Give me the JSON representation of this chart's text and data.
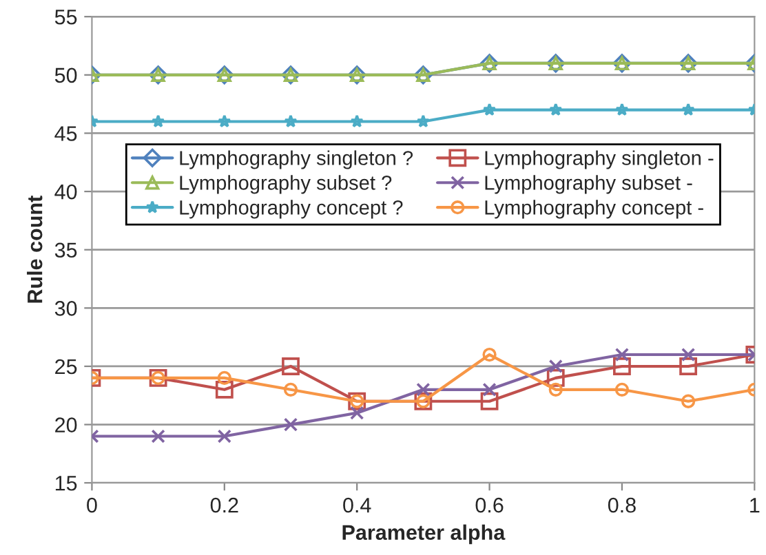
{
  "chart_data": {
    "type": "line",
    "xlabel": "Parameter alpha",
    "ylabel": "Rule count",
    "x": [
      0,
      0.1,
      0.2,
      0.3,
      0.4,
      0.5,
      0.6,
      0.7,
      0.8,
      0.9,
      1
    ],
    "xlim": [
      0,
      1
    ],
    "xticks": [
      0,
      0.2,
      0.4,
      0.6,
      0.8,
      1
    ],
    "ylim": [
      15,
      55
    ],
    "yticks": [
      15,
      20,
      25,
      30,
      35,
      40,
      45,
      50,
      55
    ],
    "grid": "y",
    "legend": "center",
    "line_style": "solid",
    "series": [
      {
        "name": "Lymphography singleton ?",
        "color": "#4f81bd",
        "marker": "diamond",
        "values": [
          50,
          50,
          50,
          50,
          50,
          50,
          51,
          51,
          51,
          51,
          51
        ]
      },
      {
        "name": "Lymphography singleton -",
        "color": "#c0504d",
        "marker": "square",
        "values": [
          24,
          24,
          23,
          25,
          22,
          22,
          22,
          24,
          25,
          25,
          26
        ]
      },
      {
        "name": "Lymphography subset ?",
        "color": "#9bbb59",
        "marker": "triangle",
        "values": [
          50,
          50,
          50,
          50,
          50,
          50,
          51,
          51,
          51,
          51,
          51
        ]
      },
      {
        "name": "Lymphography subset -",
        "color": "#8064a2",
        "marker": "cross",
        "values": [
          19,
          19,
          19,
          20,
          21,
          23,
          23,
          25,
          26,
          26,
          26
        ]
      },
      {
        "name": "Lymphography concept ?",
        "color": "#4bacc6",
        "marker": "star",
        "values": [
          46,
          46,
          46,
          46,
          46,
          46,
          47,
          47,
          47,
          47,
          47
        ]
      },
      {
        "name": "Lymphography concept -",
        "color": "#f79646",
        "marker": "circle",
        "values": [
          24,
          24,
          24,
          23,
          22,
          22,
          26,
          23,
          23,
          22,
          23
        ]
      }
    ]
  }
}
